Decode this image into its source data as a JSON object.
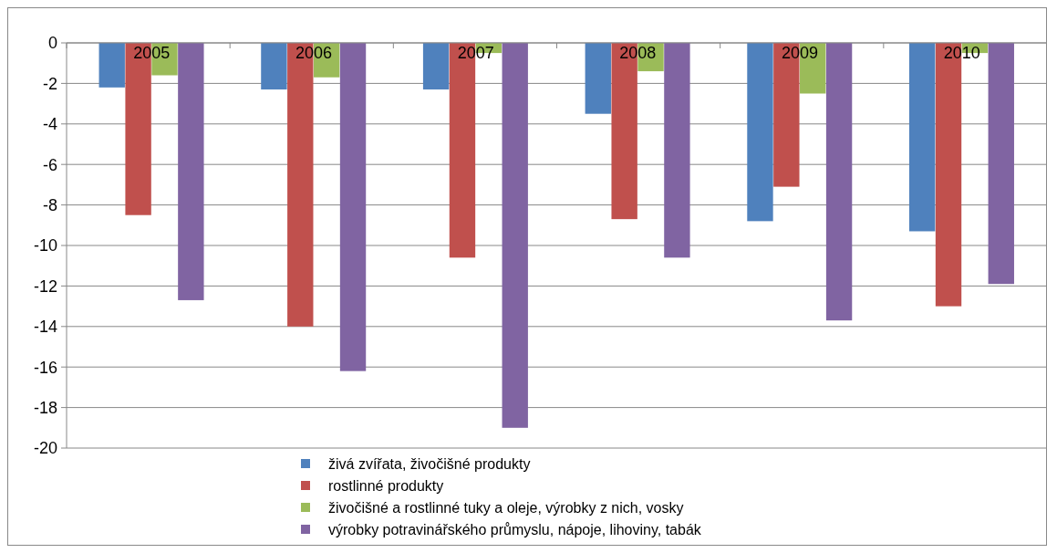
{
  "chart_data": {
    "type": "bar",
    "categories": [
      "2005",
      "2006",
      "2007",
      "2008",
      "2009",
      "2010"
    ],
    "series": [
      {
        "name": "živá zvířata, živočišné produkty",
        "color": "#4f81bd",
        "values": [
          -2.2,
          -2.3,
          -2.3,
          -3.5,
          -8.8,
          -9.3
        ]
      },
      {
        "name": "rostlinné produkty",
        "color": "#c0504d",
        "values": [
          -8.5,
          -14.0,
          -10.6,
          -8.7,
          -7.1,
          -13.0
        ]
      },
      {
        "name": "živočišné a rostlinné tuky a oleje, výrobky z nich, vosky",
        "color": "#9bbb59",
        "values": [
          -1.6,
          -1.7,
          -0.5,
          -1.4,
          -2.5,
          -0.5
        ]
      },
      {
        "name": "výrobky potravinářského průmyslu, nápoje, lihoviny, tabák",
        "color": "#8064a2",
        "values": [
          -12.7,
          -16.2,
          -19.0,
          -10.6,
          -13.7,
          -11.9
        ]
      }
    ],
    "ylim": [
      -20,
      0
    ],
    "yticks": [
      -20,
      -18,
      -16,
      -14,
      -12,
      -10,
      -8,
      -6,
      -4,
      -2,
      0
    ],
    "grid": "y",
    "legend": "bottom"
  }
}
